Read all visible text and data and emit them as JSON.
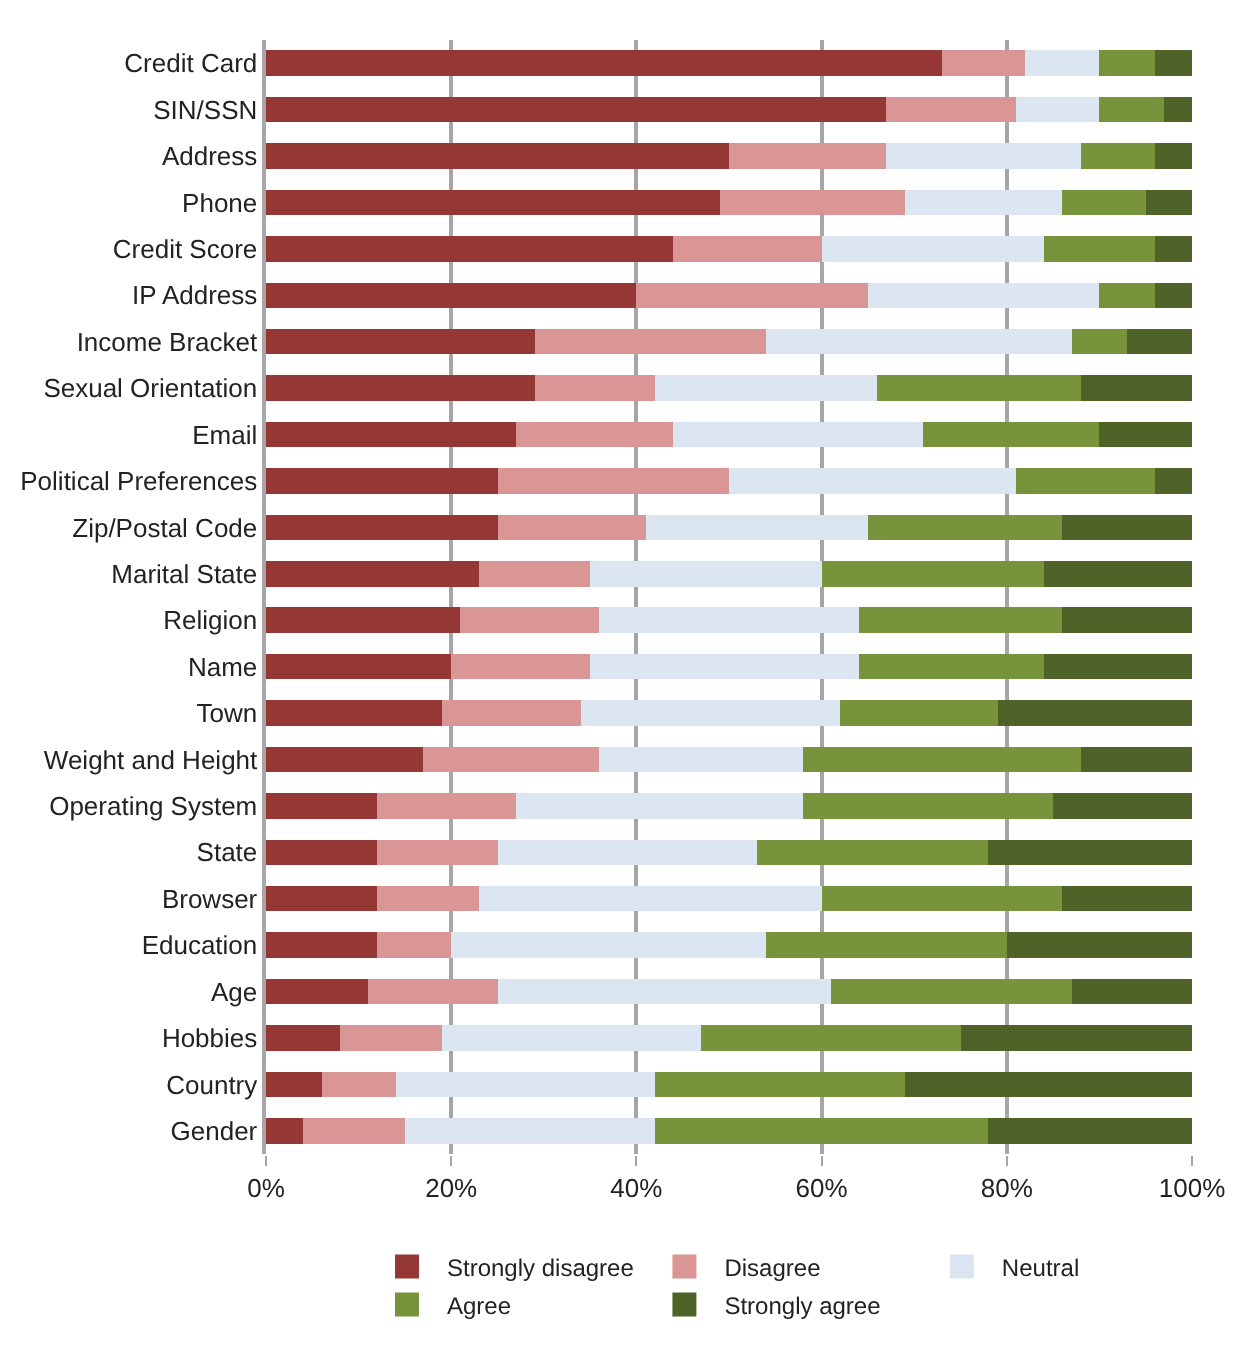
{
  "chart_data": {
    "type": "bar",
    "orientation": "horizontal",
    "stacked": true,
    "categories": [
      "Credit Card",
      "SIN/SSN",
      "Address",
      "Phone",
      "Credit Score",
      "IP Address",
      "Income Bracket",
      "Sexual Orientation",
      "Email",
      "Political Preferences",
      "Zip/Postal Code",
      "Marital State",
      "Religion",
      "Name",
      "Town",
      "Weight and Height",
      "Operating System",
      "State",
      "Browser",
      "Education",
      "Age",
      "Hobbies",
      "Country",
      "Gender"
    ],
    "series": [
      {
        "name": "Strongly disagree",
        "color": "#953735",
        "values": [
          73,
          67,
          50,
          49,
          44,
          40,
          29,
          29,
          27,
          25,
          25,
          23,
          21,
          20,
          19,
          17,
          12,
          12,
          12,
          12,
          11,
          8,
          6,
          4
        ]
      },
      {
        "name": "Disagree",
        "color": "#d99694",
        "values": [
          9,
          14,
          17,
          20,
          16,
          25,
          25,
          13,
          17,
          25,
          16,
          12,
          15,
          15,
          15,
          19,
          15,
          13,
          11,
          8,
          14,
          11,
          8,
          11
        ]
      },
      {
        "name": "Neutral",
        "color": "#dce6f2",
        "values": [
          8,
          9,
          21,
          17,
          24,
          25,
          33,
          24,
          27,
          31,
          24,
          25,
          28,
          29,
          28,
          22,
          31,
          28,
          37,
          34,
          36,
          28,
          28,
          27
        ]
      },
      {
        "name": "Agree",
        "color": "#77933c",
        "values": [
          6,
          7,
          8,
          9,
          12,
          6,
          6,
          22,
          19,
          15,
          21,
          24,
          22,
          20,
          17,
          30,
          27,
          25,
          26,
          26,
          26,
          28,
          27,
          36
        ]
      },
      {
        "name": "Strongly agree",
        "color": "#4f6228",
        "values": [
          4,
          3,
          4,
          5,
          4,
          4,
          7,
          12,
          10,
          4,
          14,
          16,
          14,
          16,
          21,
          12,
          15,
          22,
          14,
          20,
          13,
          25,
          31,
          22
        ]
      }
    ],
    "xlim": [
      0,
      100
    ],
    "xticks": [
      {
        "value": 0,
        "label": "0%"
      },
      {
        "value": 20,
        "label": "20%"
      },
      {
        "value": 40,
        "label": "40%"
      },
      {
        "value": 60,
        "label": "60%"
      },
      {
        "value": 80,
        "label": "80%"
      },
      {
        "value": 100,
        "label": "100%"
      }
    ],
    "grid": "x",
    "legend": "bottom"
  }
}
